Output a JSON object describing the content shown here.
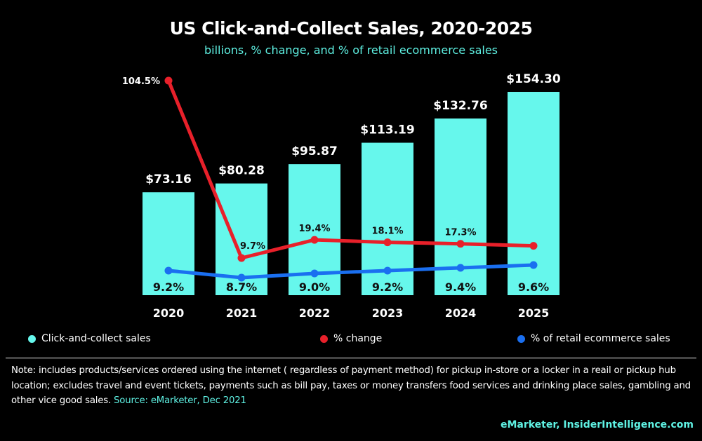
{
  "chart_data": {
    "type": "bar",
    "title": "US Click-and-Collect Sales, 2020-2025",
    "subtitle": "billions, % change, and % of retail ecommerce sales",
    "categories": [
      "2020",
      "2021",
      "2022",
      "2023",
      "2024",
      "2025"
    ],
    "series": [
      {
        "name": "Click-and-collect sales",
        "type": "bar",
        "color": "#66f7ec",
        "values": [
          73.16,
          80.28,
          95.87,
          113.19,
          132.76,
          154.3
        ],
        "labels": [
          "$73.16",
          "$80.28",
          "$95.87",
          "$113.19",
          "$132.76",
          "$154.30"
        ]
      },
      {
        "name": "% change",
        "type": "line",
        "color": "#e8202a",
        "values": [
          104.5,
          9.7,
          19.4,
          18.1,
          17.3,
          16.2
        ],
        "labels": [
          "104.5%",
          "9.7%",
          "19.4%",
          "18.1%",
          "17.3%",
          ""
        ]
      },
      {
        "name": "% of retail ecommerce sales",
        "type": "line",
        "color": "#1a6ff0",
        "values": [
          9.2,
          8.7,
          9.0,
          9.2,
          9.4,
          9.6
        ],
        "labels": [
          "9.2%",
          "8.7%",
          "9.0%",
          "9.2%",
          "9.4%",
          "9.6%"
        ]
      }
    ],
    "grid": false,
    "legend": "bottom"
  },
  "note": {
    "text": "Note: includes products/services ordered using the internet ( regardless of payment method) for pickup in-store or a locker in a reail or pickup hub location; excludes travel and event tickets, payments such as bill pay, taxes or money transfers food services and drinking place sales, gambling and other vice good sales. ",
    "source": "Source: eMarketer, Dec 2021"
  },
  "footer": "eMarketer, InsiderIntelligence.com"
}
